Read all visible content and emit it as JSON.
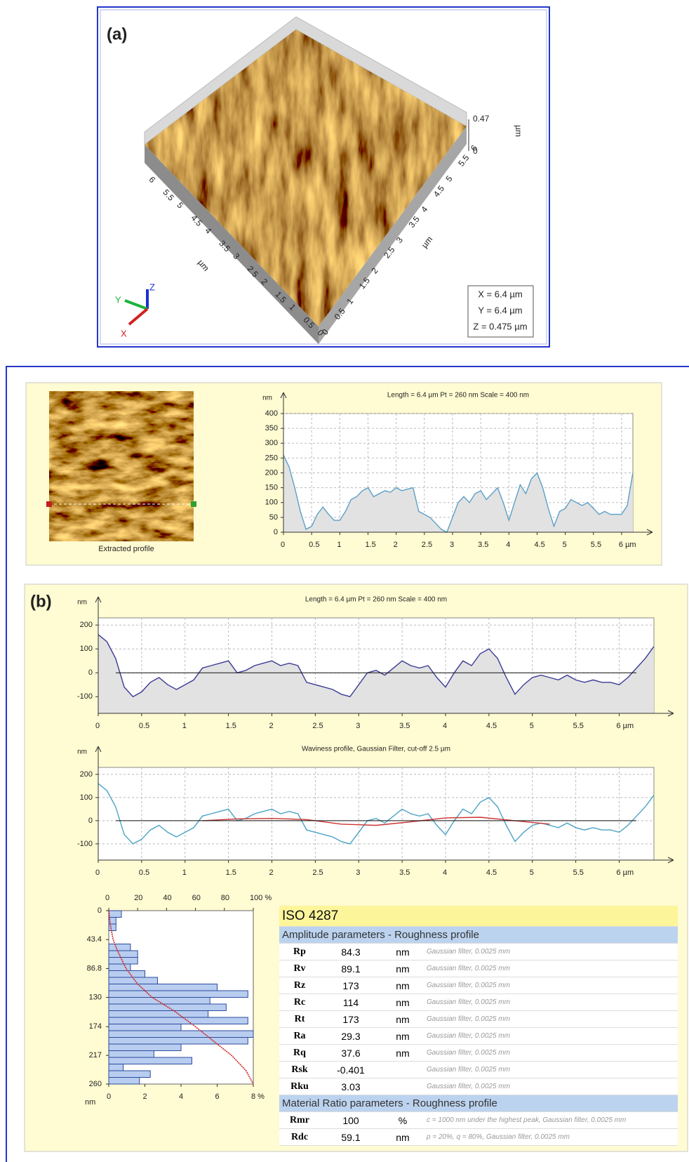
{
  "panel_a": {
    "label": "(a)",
    "z_ticks": [
      0.47,
      0
    ],
    "z_unit": "µm",
    "x_ticks": [
      6,
      5.5,
      5,
      4.5,
      4,
      3.5,
      3,
      2.5,
      2,
      1.5,
      1,
      0.5,
      0
    ],
    "x_unit": "µm",
    "y_ticks": [
      0,
      0.5,
      1,
      1.5,
      2,
      2.5,
      3,
      3.5,
      4,
      4.5,
      5,
      5.5,
      6
    ],
    "y_unit": "µm",
    "axes": [
      "X",
      "Y",
      "Z"
    ],
    "dimensions": [
      "X = 6.4 µm",
      "Y = 6.4 µm",
      "Z = 0.475 µm"
    ]
  },
  "panel_b_label": "(b)",
  "image_caption": "Extracted profile",
  "chart_data": [
    {
      "type": "line",
      "title": "Length = 6.4 µm  Pt = 260 nm  Scale = 400 nm",
      "ylabel": "nm",
      "x": [
        0,
        0.1,
        0.2,
        0.3,
        0.4,
        0.5,
        0.6,
        0.7,
        0.8,
        0.9,
        1,
        1.1,
        1.2,
        1.3,
        1.4,
        1.5,
        1.6,
        1.7,
        1.8,
        1.9,
        2,
        2.1,
        2.2,
        2.3,
        2.4,
        2.5,
        2.6,
        2.7,
        2.8,
        2.9,
        3,
        3.1,
        3.2,
        3.3,
        3.4,
        3.5,
        3.6,
        3.7,
        3.8,
        3.9,
        4,
        4.1,
        4.2,
        4.3,
        4.4,
        4.5,
        4.6,
        4.7,
        4.8,
        4.9,
        5,
        5.1,
        5.2,
        5.3,
        5.4,
        5.5,
        5.6,
        5.7,
        5.8,
        5.9,
        6,
        6.1,
        6.2
      ],
      "values": [
        260,
        220,
        150,
        70,
        10,
        20,
        60,
        85,
        60,
        40,
        40,
        70,
        110,
        120,
        140,
        150,
        120,
        130,
        140,
        135,
        150,
        140,
        145,
        150,
        70,
        60,
        50,
        30,
        10,
        0,
        50,
        100,
        120,
        100,
        130,
        140,
        110,
        130,
        150,
        100,
        40,
        100,
        160,
        130,
        180,
        200,
        150,
        80,
        20,
        70,
        80,
        110,
        100,
        90,
        100,
        80,
        60,
        70,
        60,
        60,
        60,
        90,
        200
      ],
      "color": "#5b9fc8",
      "fill": "#e2e2e2",
      "xlim": [
        0,
        6.2
      ],
      "xticks": [
        0,
        0.5,
        1,
        1.5,
        2,
        2.5,
        3,
        3.5,
        4,
        4.5,
        5,
        5.5,
        {
          "value": 6,
          "label": "6 µm"
        }
      ],
      "ylim": [
        0,
        400
      ],
      "yticks": [
        0,
        50,
        100,
        150,
        200,
        250,
        300,
        350,
        400
      ],
      "grid": true
    },
    {
      "type": "line",
      "title": "Length = 6.4 µm  Pt = 260 nm  Scale = 400 nm",
      "ylabel": "nm",
      "x": [
        0,
        0.1,
        0.2,
        0.3,
        0.4,
        0.5,
        0.6,
        0.7,
        0.8,
        0.9,
        1,
        1.1,
        1.2,
        1.3,
        1.4,
        1.5,
        1.6,
        1.7,
        1.8,
        1.9,
        2,
        2.1,
        2.2,
        2.3,
        2.4,
        2.5,
        2.6,
        2.7,
        2.8,
        2.9,
        3,
        3.1,
        3.2,
        3.3,
        3.4,
        3.5,
        3.6,
        3.7,
        3.8,
        3.9,
        4,
        4.1,
        4.2,
        4.3,
        4.4,
        4.5,
        4.6,
        4.7,
        4.8,
        4.9,
        5,
        5.1,
        5.2,
        5.3,
        5.4,
        5.5,
        5.6,
        5.7,
        5.8,
        5.9,
        6,
        6.1,
        6.2,
        6.3,
        6.4
      ],
      "values": [
        160,
        130,
        60,
        -60,
        -100,
        -80,
        -40,
        -20,
        -50,
        -70,
        -50,
        -30,
        20,
        30,
        40,
        50,
        0,
        10,
        30,
        40,
        50,
        30,
        40,
        30,
        -40,
        -50,
        -60,
        -70,
        -90,
        -100,
        -50,
        0,
        10,
        -10,
        20,
        50,
        30,
        20,
        30,
        -20,
        -60,
        0,
        50,
        30,
        80,
        100,
        60,
        -20,
        -90,
        -50,
        -20,
        -10,
        -20,
        -30,
        -10,
        -30,
        -40,
        -30,
        -40,
        -40,
        -50,
        -20,
        20,
        60,
        110
      ],
      "color": "#3b3b96",
      "fill": "#e2e2e2",
      "xlim": [
        0,
        6.4
      ],
      "xticks": [
        0,
        0.5,
        1,
        1.5,
        2,
        2.5,
        3,
        3.5,
        4,
        4.5,
        5,
        5.5,
        {
          "value": 6,
          "label": "6 µm"
        }
      ],
      "ylim": [
        -170,
        230
      ],
      "yticks": [
        -100,
        0,
        100,
        200
      ],
      "grid": true
    },
    {
      "type": "line",
      "title": "Waviness profile, Gaussian Filter, cut-off 2.5 µm",
      "ylabel": "nm",
      "series": [
        {
          "color": "#4aa3c4",
          "x": [
            0,
            0.1,
            0.2,
            0.3,
            0.4,
            0.5,
            0.6,
            0.7,
            0.8,
            0.9,
            1,
            1.1,
            1.2,
            1.3,
            1.4,
            1.5,
            1.6,
            1.7,
            1.8,
            1.9,
            2,
            2.1,
            2.2,
            2.3,
            2.4,
            2.5,
            2.6,
            2.7,
            2.8,
            2.9,
            3,
            3.1,
            3.2,
            3.3,
            3.4,
            3.5,
            3.6,
            3.7,
            3.8,
            3.9,
            4,
            4.1,
            4.2,
            4.3,
            4.4,
            4.5,
            4.6,
            4.7,
            4.8,
            4.9,
            5,
            5.1,
            5.2,
            5.3,
            5.4,
            5.5,
            5.6,
            5.7,
            5.8,
            5.9,
            6,
            6.1,
            6.2,
            6.3,
            6.4
          ],
          "values": [
            160,
            130,
            60,
            -60,
            -100,
            -80,
            -40,
            -20,
            -50,
            -70,
            -50,
            -30,
            20,
            30,
            40,
            50,
            0,
            10,
            30,
            40,
            50,
            30,
            40,
            30,
            -40,
            -50,
            -60,
            -70,
            -90,
            -100,
            -50,
            0,
            10,
            -10,
            20,
            50,
            30,
            20,
            30,
            -20,
            -60,
            0,
            50,
            30,
            80,
            100,
            60,
            -20,
            -90,
            -50,
            -20,
            -10,
            -20,
            -30,
            -10,
            -30,
            -40,
            -30,
            -40,
            -40,
            -50,
            -20,
            20,
            60,
            110
          ]
        },
        {
          "color": "#cc3333",
          "x": [
            1.2,
            1.6,
            2,
            2.4,
            2.8,
            3.2,
            3.6,
            4,
            4.4,
            4.8,
            5.2
          ],
          "values": [
            0,
            8,
            10,
            5,
            -15,
            -20,
            -5,
            12,
            15,
            0,
            -15
          ]
        }
      ],
      "xlim": [
        0,
        6.4
      ],
      "xticks": [
        0,
        0.5,
        1,
        1.5,
        2,
        2.5,
        3,
        3.5,
        4,
        4.5,
        5,
        5.5,
        {
          "value": 6,
          "label": "6 µm"
        }
      ],
      "ylim": [
        -170,
        230
      ],
      "yticks": [
        -100,
        0,
        100,
        200
      ],
      "grid": true
    },
    {
      "type": "histogram",
      "orientation": "horizontal",
      "ylabel": "nm",
      "bins": [
        0,
        10,
        20,
        30,
        40,
        50,
        60,
        70,
        80,
        90,
        100,
        110,
        120,
        130,
        140,
        150,
        160,
        170,
        180,
        190,
        200,
        210,
        220,
        230,
        240,
        250,
        260
      ],
      "values": [
        0.7,
        0.4,
        0.4,
        0,
        0,
        1.2,
        1.6,
        1.6,
        1.2,
        2,
        2.7,
        6,
        7.7,
        5.6,
        6.5,
        5.5,
        7.7,
        4,
        8,
        7.7,
        4,
        2.5,
        4.6,
        0.8,
        2.3,
        1.7
      ],
      "color": "#b9cdf0",
      "edge_color": "#2b4c9c",
      "xlim": [
        0,
        8
      ],
      "xticks": [
        0,
        2,
        4,
        6,
        {
          "value": 8,
          "label": "8 %"
        }
      ],
      "ylim": [
        0,
        260
      ],
      "yticks": [
        0,
        43.4,
        86.8,
        130,
        174,
        217,
        260
      ],
      "x2lim": [
        0,
        100
      ],
      "x2ticks": [
        0,
        20,
        40,
        60,
        80,
        {
          "value": 100,
          "label": "100 %"
        }
      ],
      "curve": {
        "axis": "x2",
        "color": "#cc2222",
        "depth": [
          0,
          20,
          43.4,
          60,
          86.8,
          110,
          130,
          150,
          174,
          200,
          217,
          240,
          260
        ],
        "values": [
          0,
          1,
          3,
          6,
          12,
          20,
          30,
          45,
          60,
          75,
          85,
          95,
          100
        ]
      }
    }
  ],
  "table": {
    "title": "ISO 4287",
    "sections": [
      {
        "heading": "Amplitude parameters - Roughness profile",
        "rows": [
          [
            "Rp",
            "84.3",
            "nm",
            "Gaussian filter, 0.0025 mm"
          ],
          [
            "Rv",
            "89.1",
            "nm",
            "Gaussian filter, 0.0025 mm"
          ],
          [
            "Rz",
            "173",
            "nm",
            "Gaussian filter, 0.0025 mm"
          ],
          [
            "Rc",
            "114",
            "nm",
            "Gaussian filter, 0.0025 mm"
          ],
          [
            "Rt",
            "173",
            "nm",
            "Gaussian filter, 0.0025 mm"
          ],
          [
            "Ra",
            "29.3",
            "nm",
            "Gaussian filter, 0.0025 mm"
          ],
          [
            "Rq",
            "37.6",
            "nm",
            "Gaussian filter, 0.0025 mm"
          ],
          [
            "Rsk",
            "-0.401",
            "",
            "Gaussian filter, 0.0025 mm"
          ],
          [
            "Rku",
            "3.03",
            "",
            "Gaussian filter, 0.0025 mm"
          ]
        ]
      },
      {
        "heading": "Material Ratio parameters - Roughness profile",
        "rows": [
          [
            "Rmr",
            "100",
            "%",
            "c = 1000 nm under the highest peak, Gaussian filter, 0.0025 mm"
          ],
          [
            "Rdc",
            "59.1",
            "nm",
            "p = 20%, q = 80%, Gaussian filter, 0.0025 mm"
          ]
        ]
      }
    ]
  }
}
